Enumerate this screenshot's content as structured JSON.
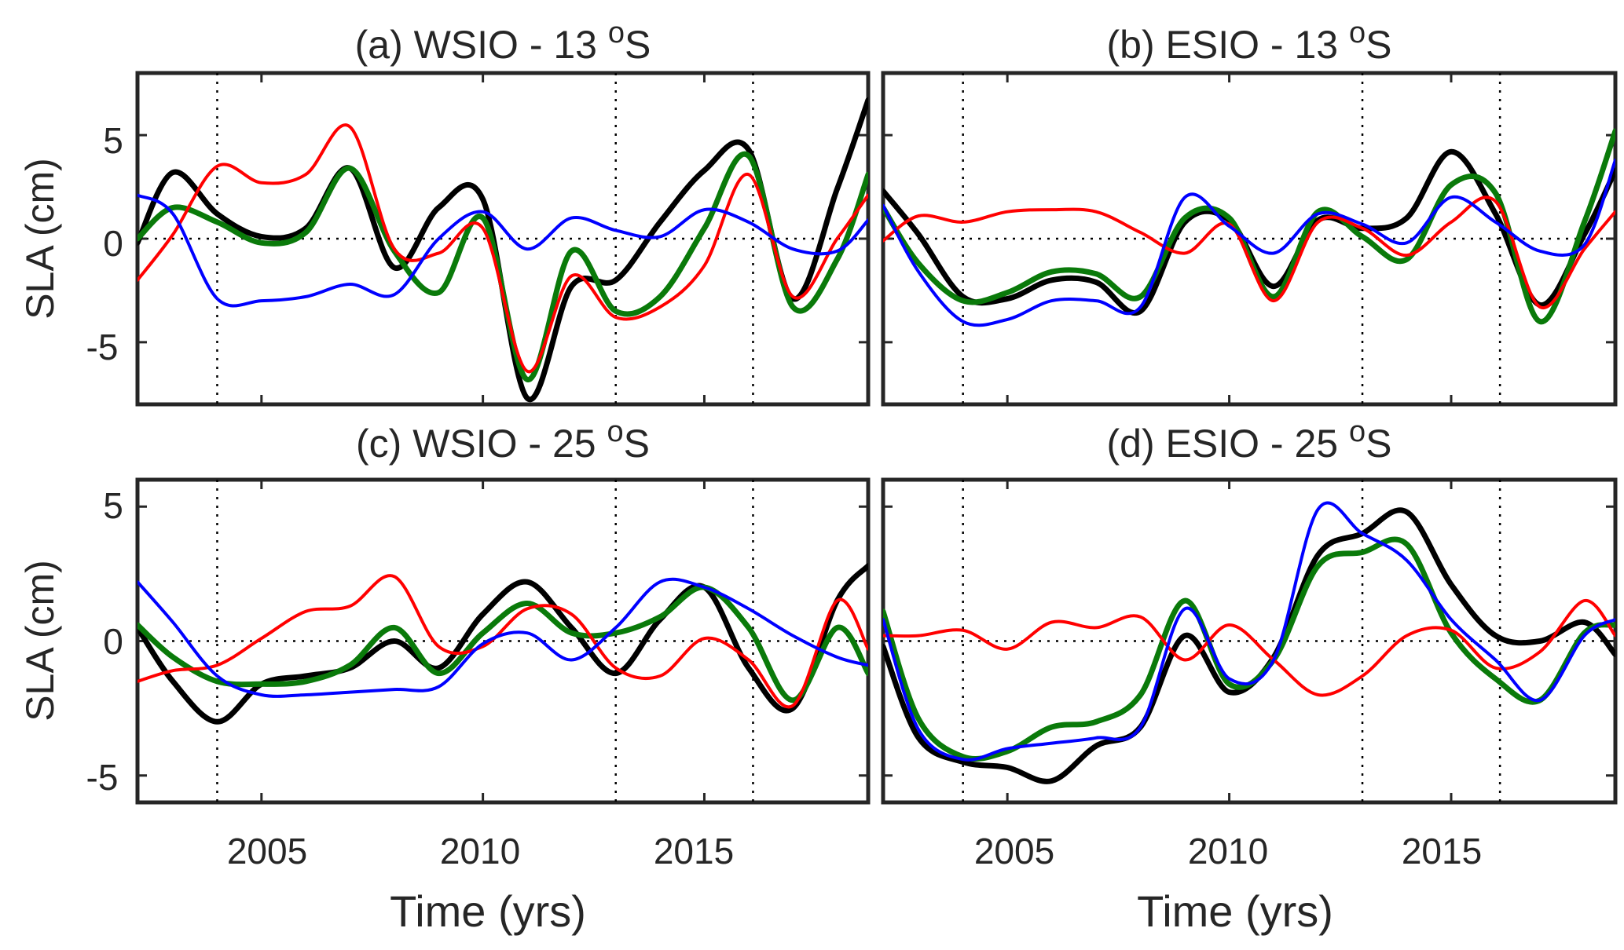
{
  "chart_data": [
    {
      "type": "line",
      "id": "a",
      "title": "(a) WSIO - 13 ",
      "title_sup": "o",
      "title_end": "S",
      "xlabel": "",
      "ylabel": "SLA (cm)",
      "xlim": [
        2002.2,
        2018.7
      ],
      "ylim": [
        -8,
        8
      ],
      "yticks": [
        5,
        0,
        -5
      ],
      "ytick_labels": [
        "5",
        "0",
        "-5"
      ],
      "xticks": [
        2005,
        2010,
        2015
      ],
      "xtick_labels": [],
      "ref_vlines": [
        2004,
        2013,
        2016.1
      ],
      "ref_hline": 0,
      "x": [
        2002.2,
        2003,
        2004,
        2005,
        2006,
        2007,
        2008,
        2009,
        2010,
        2011,
        2012,
        2013,
        2014,
        2015,
        2016,
        2017,
        2018,
        2018.7
      ],
      "series": [
        {
          "name": "black",
          "color": "#000000",
          "width": 7,
          "values": [
            -0.2,
            3.2,
            1.2,
            0.1,
            0.5,
            3.4,
            -1.4,
            1.5,
            1.9,
            -7.7,
            -2.3,
            -2.0,
            0.8,
            3.3,
            4.3,
            -2.9,
            2.4,
            6.7
          ]
        },
        {
          "name": "green",
          "color": "#0a7a0a",
          "width": 7,
          "values": [
            0.0,
            1.5,
            0.8,
            -0.2,
            0.3,
            3.4,
            -0.6,
            -2.6,
            1.0,
            -6.8,
            -0.6,
            -3.5,
            -2.8,
            0.5,
            4.0,
            -3.3,
            -1.0,
            3.1
          ]
        },
        {
          "name": "red",
          "color": "#ff0000",
          "width": 4,
          "values": [
            -2.0,
            0.2,
            3.5,
            2.7,
            3.1,
            5.4,
            -0.5,
            -0.7,
            0.5,
            -6.4,
            -1.8,
            -3.8,
            -3.3,
            -1.3,
            3.1,
            -2.8,
            0.0,
            2.1
          ]
        },
        {
          "name": "blue",
          "color": "#0000ff",
          "width": 4,
          "values": [
            2.1,
            1.2,
            -2.9,
            -3.0,
            -2.8,
            -2.2,
            -2.7,
            0.0,
            1.3,
            -0.5,
            1.0,
            0.4,
            0.1,
            1.4,
            0.8,
            -0.5,
            -0.6,
            0.9
          ]
        }
      ]
    },
    {
      "type": "line",
      "id": "b",
      "title": "(b) ESIO - 13 ",
      "title_sup": "o",
      "title_end": "S",
      "xlabel": "",
      "ylabel": "",
      "xlim": [
        2002.2,
        2018.7
      ],
      "ylim": [
        -8,
        8
      ],
      "yticks": [
        5,
        0,
        -5
      ],
      "ytick_labels": [],
      "xticks": [
        2005,
        2010,
        2015
      ],
      "xtick_labels": [],
      "ref_vlines": [
        2004,
        2013,
        2016.1
      ],
      "ref_hline": 0,
      "x": [
        2002.2,
        2003,
        2004,
        2005,
        2006,
        2007,
        2008,
        2009,
        2010,
        2011,
        2012,
        2013,
        2014,
        2015,
        2016,
        2017,
        2018,
        2018.7
      ],
      "series": [
        {
          "name": "black",
          "color": "#000000",
          "width": 7,
          "values": [
            2.3,
            0.2,
            -2.8,
            -2.9,
            -2.0,
            -2.1,
            -3.5,
            0.8,
            0.9,
            -2.3,
            0.9,
            0.5,
            1.0,
            4.2,
            1.2,
            -3.2,
            0.2,
            3.3
          ]
        },
        {
          "name": "green",
          "color": "#0a7a0a",
          "width": 7,
          "values": [
            1.5,
            -1.2,
            -3.0,
            -2.6,
            -1.6,
            -1.7,
            -2.8,
            1.0,
            1.0,
            -2.8,
            1.3,
            0.1,
            -1.0,
            2.6,
            2.2,
            -4.0,
            0.8,
            5.2
          ]
        },
        {
          "name": "red",
          "color": "#ff0000",
          "width": 4,
          "values": [
            -0.1,
            1.1,
            0.8,
            1.3,
            1.4,
            1.3,
            0.3,
            -0.7,
            0.7,
            -3.0,
            0.8,
            0.5,
            -0.8,
            0.8,
            1.8,
            -3.3,
            -0.5,
            1.3
          ]
        },
        {
          "name": "blue",
          "color": "#0000ff",
          "width": 4,
          "values": [
            1.6,
            -1.6,
            -4.0,
            -3.9,
            -3.0,
            -3.0,
            -3.3,
            2.0,
            0.6,
            -0.7,
            1.2,
            0.7,
            -0.2,
            2.0,
            0.8,
            -0.6,
            -0.3,
            3.8
          ]
        }
      ]
    },
    {
      "type": "line",
      "id": "c",
      "title": "(c) WSIO - 25 ",
      "title_sup": "o",
      "title_end": "S",
      "xlabel": "Time (yrs)",
      "ylabel": "SLA (cm)",
      "xlim": [
        2002.2,
        2018.7
      ],
      "ylim": [
        -6,
        6
      ],
      "yticks": [
        5,
        0,
        -5
      ],
      "ytick_labels": [
        "5",
        "0",
        "-5"
      ],
      "xticks": [
        2005,
        2010,
        2015
      ],
      "xtick_labels": [
        "2005",
        "2010",
        "2015"
      ],
      "ref_vlines": [
        2004,
        2013,
        2016.1
      ],
      "ref_hline": 0,
      "x": [
        2002.2,
        2003,
        2004,
        2005,
        2006,
        2007,
        2008,
        2009,
        2010,
        2011,
        2012,
        2013,
        2014,
        2015,
        2016,
        2017,
        2018,
        2018.7
      ],
      "series": [
        {
          "name": "black",
          "color": "#000000",
          "width": 7,
          "values": [
            0.5,
            -1.5,
            -3.0,
            -1.6,
            -1.3,
            -1.0,
            0.0,
            -1.0,
            1.0,
            2.2,
            0.5,
            -1.2,
            0.8,
            2.0,
            -1.0,
            -2.5,
            1.5,
            2.8
          ]
        },
        {
          "name": "green",
          "color": "#0a7a0a",
          "width": 7,
          "values": [
            0.6,
            -0.6,
            -1.5,
            -1.6,
            -1.5,
            -0.9,
            0.5,
            -1.2,
            0.3,
            1.4,
            0.3,
            0.3,
            0.9,
            2.0,
            0.5,
            -2.2,
            0.5,
            -1.2
          ]
        },
        {
          "name": "red",
          "color": "#ff0000",
          "width": 4,
          "values": [
            -1.5,
            -1.1,
            -0.9,
            0.1,
            1.1,
            1.3,
            2.4,
            -0.2,
            -0.2,
            1.2,
            1.0,
            -1.0,
            -1.3,
            0.1,
            -0.7,
            -2.4,
            1.5,
            -0.3
          ]
        },
        {
          "name": "blue",
          "color": "#0000ff",
          "width": 4,
          "values": [
            2.2,
            0.7,
            -1.3,
            -2.0,
            -2.0,
            -1.9,
            -1.8,
            -1.7,
            -0.1,
            0.3,
            -0.7,
            0.5,
            2.2,
            2.0,
            1.2,
            0.2,
            -0.6,
            -0.9
          ]
        }
      ]
    },
    {
      "type": "line",
      "id": "d",
      "title": "(d) ESIO - 25 ",
      "title_sup": "o",
      "title_end": "S",
      "xlabel": "Time (yrs)",
      "ylabel": "",
      "xlim": [
        2002.2,
        2018.7
      ],
      "ylim": [
        -6,
        6
      ],
      "yticks": [
        5,
        0,
        -5
      ],
      "ytick_labels": [],
      "xticks": [
        2005,
        2010,
        2015
      ],
      "xtick_labels": [
        "2005",
        "2010",
        "2015"
      ],
      "ref_vlines": [
        2004,
        2013,
        2016.1
      ],
      "ref_hline": 0,
      "x": [
        2002.2,
        2003,
        2004,
        2005,
        2006,
        2007,
        2008,
        2009,
        2010,
        2011,
        2012,
        2013,
        2014,
        2015,
        2016,
        2017,
        2018,
        2018.7
      ],
      "series": [
        {
          "name": "black",
          "color": "#000000",
          "width": 7,
          "values": [
            -0.2,
            -3.6,
            -4.5,
            -4.7,
            -5.2,
            -3.9,
            -3.2,
            0.2,
            -1.9,
            -0.6,
            3.2,
            4.0,
            4.8,
            2.1,
            0.2,
            0.0,
            0.7,
            -0.5
          ]
        },
        {
          "name": "green",
          "color": "#0a7a0a",
          "width": 7,
          "values": [
            1.1,
            -2.9,
            -4.3,
            -4.1,
            -3.2,
            -3.0,
            -2.0,
            1.5,
            -1.6,
            -0.7,
            2.8,
            3.3,
            3.6,
            0.3,
            -1.4,
            -2.2,
            0.3,
            0.6
          ]
        },
        {
          "name": "red",
          "color": "#ff0000",
          "width": 4,
          "values": [
            0.2,
            0.2,
            0.4,
            -0.3,
            0.7,
            0.5,
            0.9,
            -0.7,
            0.6,
            -0.7,
            -2.0,
            -1.3,
            0.2,
            0.4,
            -1.0,
            -0.4,
            1.5,
            0.2
          ]
        },
        {
          "name": "blue",
          "color": "#0000ff",
          "width": 4,
          "values": [
            0.8,
            -3.3,
            -4.4,
            -4.0,
            -3.8,
            -3.6,
            -3.2,
            1.2,
            -1.4,
            -0.7,
            4.9,
            4.0,
            3.0,
            0.8,
            -0.7,
            -2.2,
            0.2,
            0.8
          ]
        }
      ]
    }
  ]
}
